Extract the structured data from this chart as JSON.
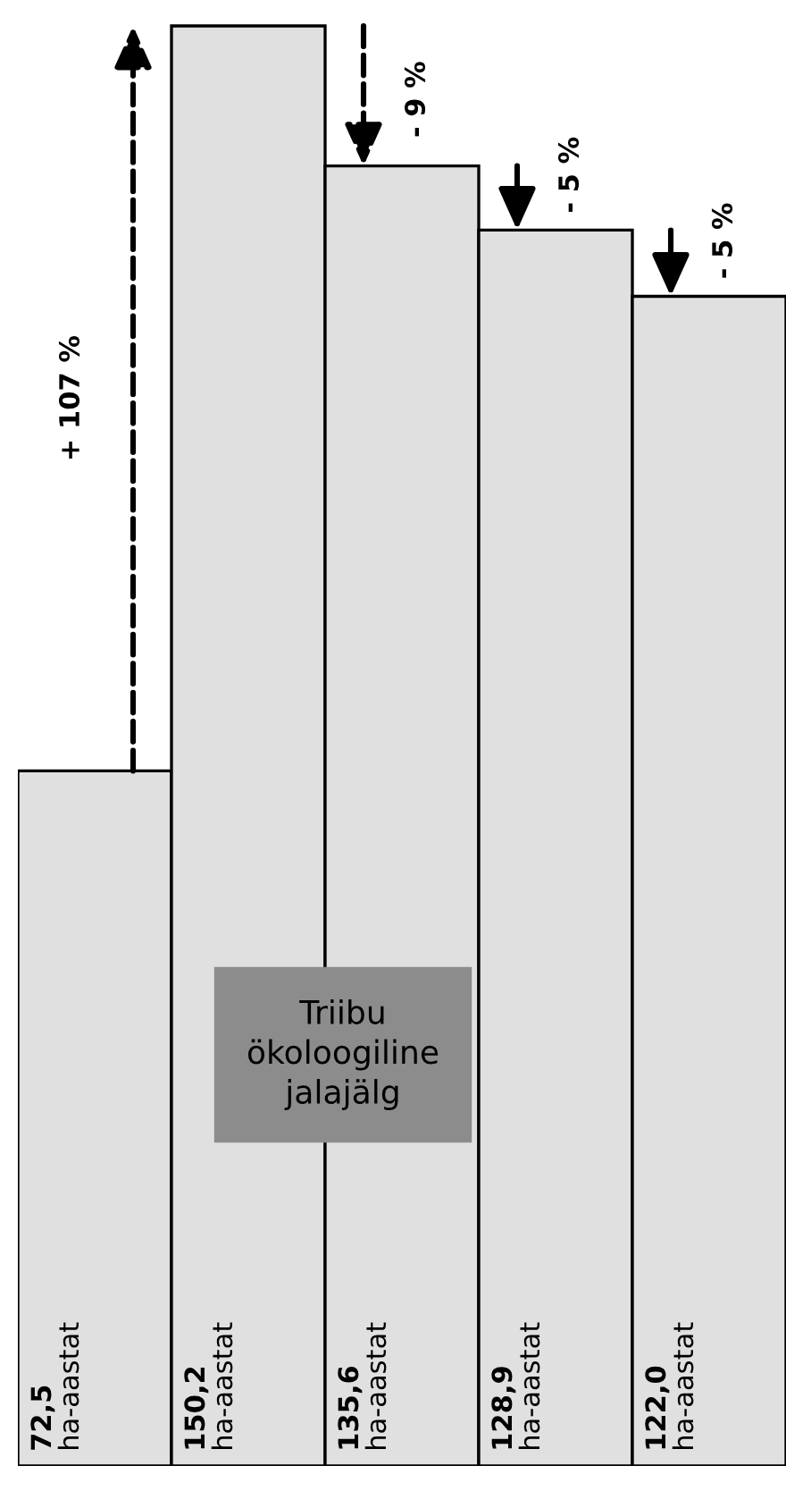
{
  "chart_data": {
    "type": "bar",
    "title": "Triibu\nökoloogiline\njalajälg",
    "categories": [
      null,
      null,
      null,
      null,
      null
    ],
    "values": [
      72.5,
      150.2,
      135.6,
      128.9,
      122.0
    ],
    "color": "#e0e0e0",
    "tick_labels": false,
    "value_labels": [
      "72,5\nha-aastat",
      "150,2\nha-aastat",
      "135,6\nha-aastat",
      "128,9\nha-aastat",
      "122,0\nha-aastat"
    ],
    "annotations": [
      "+ 107 %",
      "- 9 %",
      "- 5 %",
      "- 5 %"
    ]
  }
}
